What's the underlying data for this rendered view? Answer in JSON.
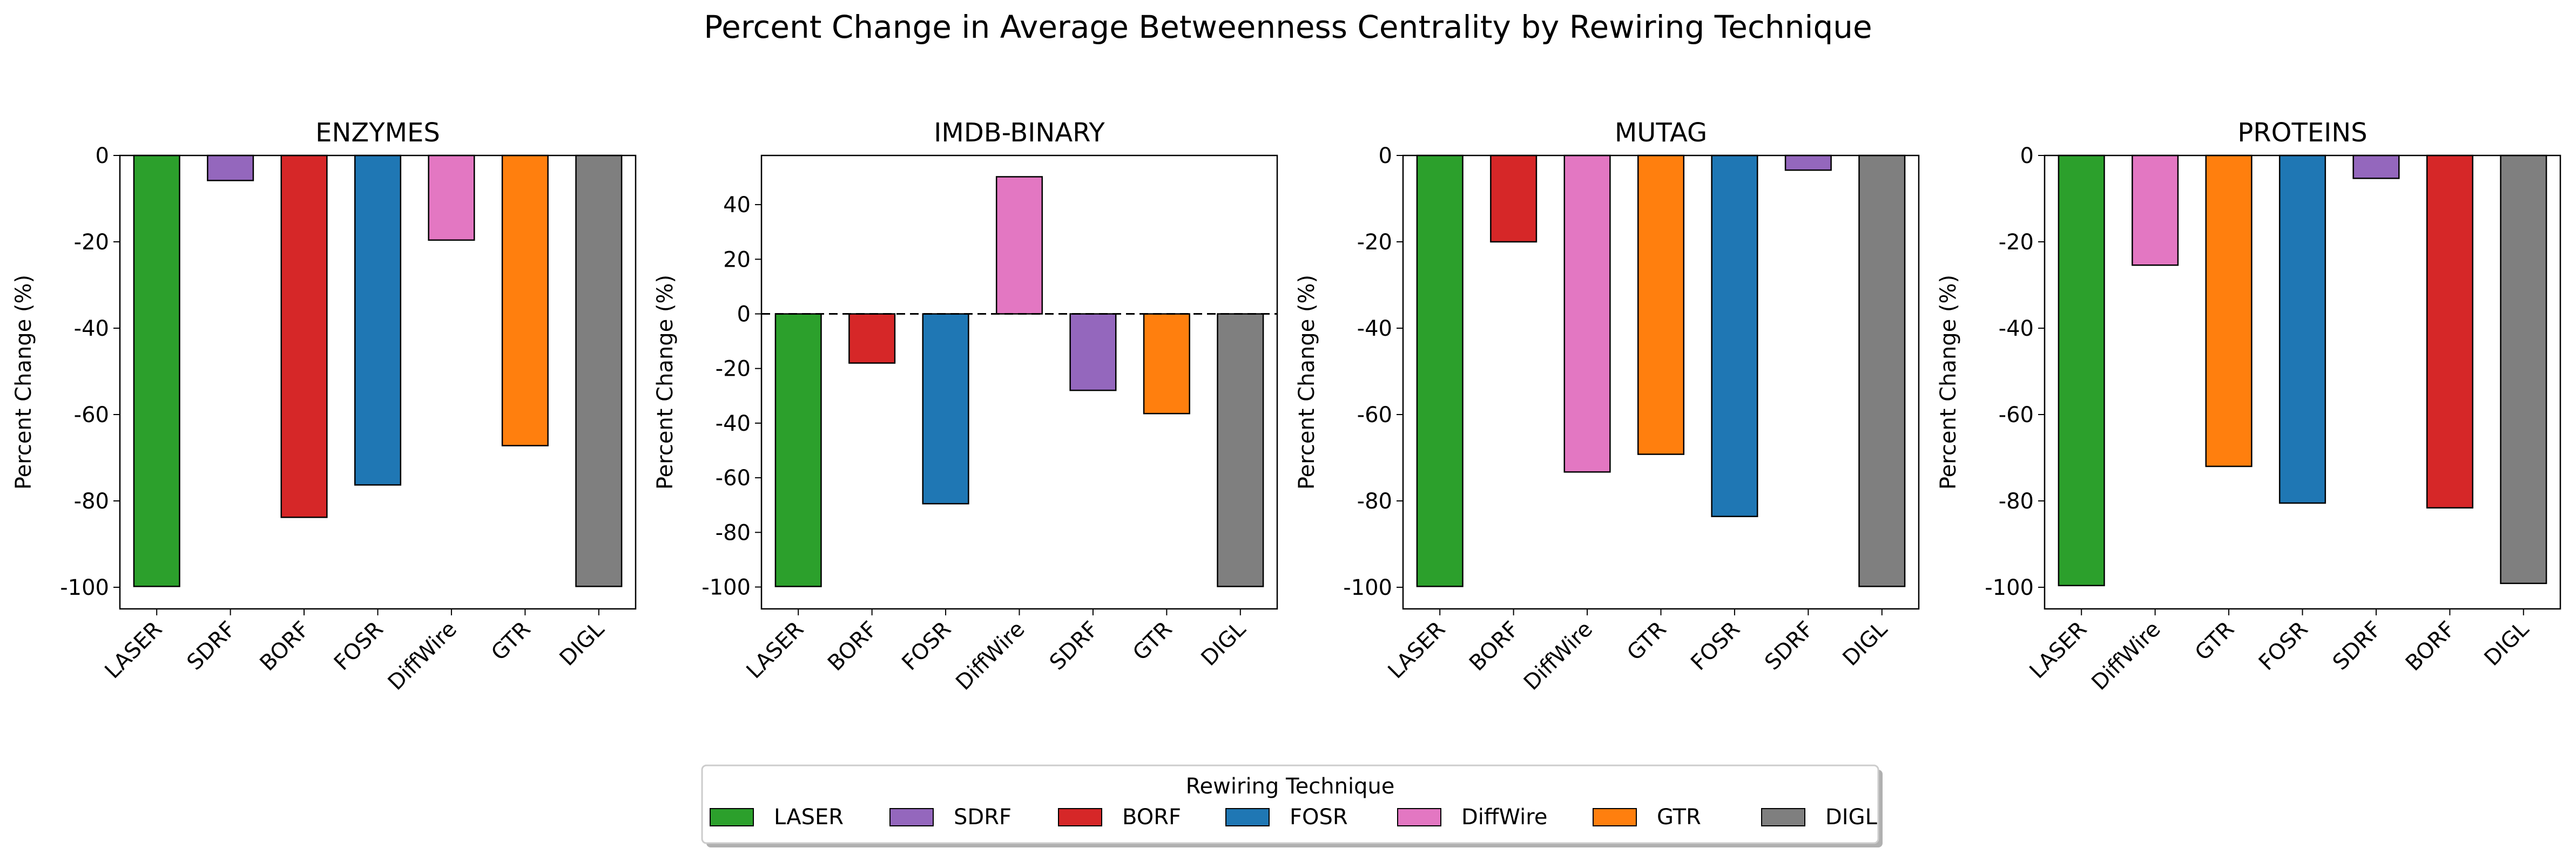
{
  "figure": {
    "title": "Percent Change in Average Betweenness Centrality by Rewiring Technique"
  },
  "legend": {
    "title": "Rewiring Technique",
    "placement": "bottom-center",
    "items": [
      {
        "label": "LASER",
        "color": "#2ca02c"
      },
      {
        "label": "SDRF",
        "color": "#9467bd"
      },
      {
        "label": "BORF",
        "color": "#d62728"
      },
      {
        "label": "FOSR",
        "color": "#1f77b4"
      },
      {
        "label": "DiffWire",
        "color": "#e377c2"
      },
      {
        "label": "GTR",
        "color": "#ff7f0e"
      },
      {
        "label": "DIGL",
        "color": "#7f7f7f"
      }
    ]
  },
  "chart_data": [
    {
      "type": "bar",
      "title": "ENZYMES",
      "xlabel": "",
      "ylabel": "Percent Change (%)",
      "ylim": [
        -105,
        0
      ],
      "yticks": [
        0,
        -20,
        -40,
        -60,
        -80,
        -100
      ],
      "zero_line": false,
      "categories": [
        "LASER",
        "SDRF",
        "BORF",
        "FOSR",
        "DiffWire",
        "GTR",
        "DIGL"
      ],
      "values": [
        -99.8,
        -5.8,
        -83.8,
        -76.3,
        -19.6,
        -67.2,
        -99.8
      ]
    },
    {
      "type": "bar",
      "title": "IMDB-BINARY",
      "xlabel": "",
      "ylabel": "Percent Change (%)",
      "ylim": [
        -108,
        58
      ],
      "yticks": [
        40,
        20,
        0,
        -20,
        -40,
        -60,
        -80,
        -100
      ],
      "zero_line": true,
      "categories": [
        "LASER",
        "BORF",
        "FOSR",
        "DiffWire",
        "SDRF",
        "GTR",
        "DIGL"
      ],
      "values": [
        -99.8,
        -18.0,
        -69.5,
        50.2,
        -28.0,
        -36.5,
        -99.8
      ]
    },
    {
      "type": "bar",
      "title": "MUTAG",
      "xlabel": "",
      "ylabel": "Percent Change (%)",
      "ylim": [
        -105,
        0
      ],
      "yticks": [
        0,
        -20,
        -40,
        -60,
        -80,
        -100
      ],
      "zero_line": false,
      "categories": [
        "LASER",
        "BORF",
        "DiffWire",
        "GTR",
        "FOSR",
        "SDRF",
        "DIGL"
      ],
      "values": [
        -99.8,
        -20.0,
        -73.3,
        -69.2,
        -83.6,
        -3.4,
        -99.8
      ]
    },
    {
      "type": "bar",
      "title": "PROTEINS",
      "xlabel": "",
      "ylabel": "Percent Change (%)",
      "ylim": [
        -105,
        0
      ],
      "yticks": [
        0,
        -20,
        -40,
        -60,
        -80,
        -100
      ],
      "zero_line": false,
      "categories": [
        "LASER",
        "DiffWire",
        "GTR",
        "FOSR",
        "SDRF",
        "BORF",
        "DIGL"
      ],
      "values": [
        -99.6,
        -25.4,
        -72.0,
        -80.5,
        -5.3,
        -81.6,
        -99.1
      ]
    }
  ]
}
